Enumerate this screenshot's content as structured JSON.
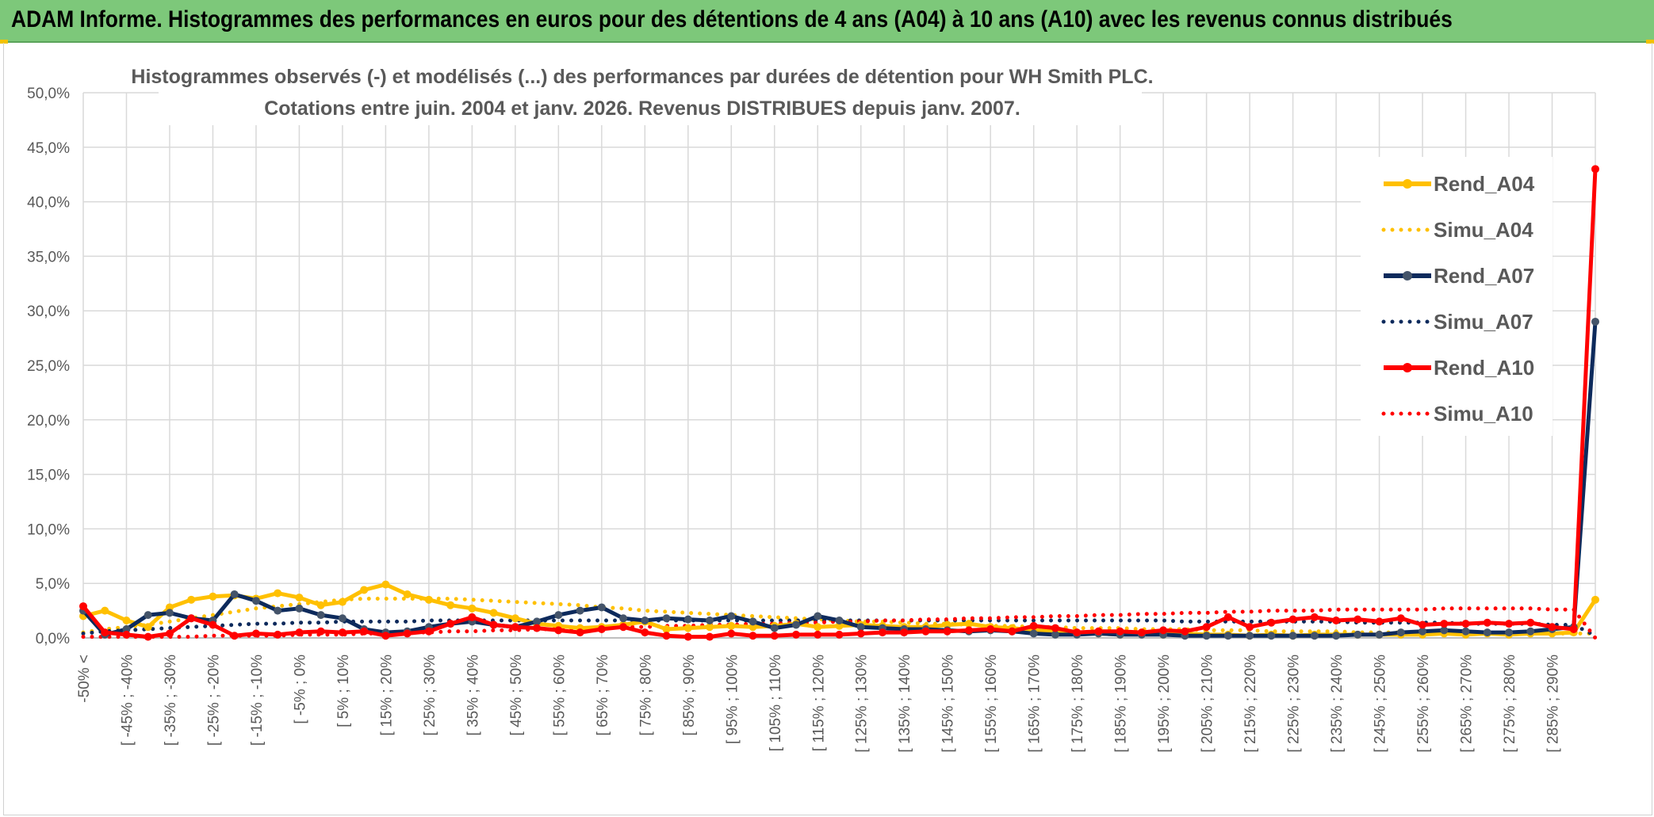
{
  "header": {
    "title": "ADAM Informe. Histogrammes des performances en euros pour des détentions de 4 ans (A04) à 10 ans (A10) avec les revenus connus distribués"
  },
  "chart_data": {
    "type": "line",
    "title_line1": "Histogrammes observés (-) et modélisés (...) des performances par durées de détention pour WH Smith PLC.",
    "title_line2": "Cotations entre juin. 2004 et janv. 2026. Revenus DISTRIBUES depuis janv. 2007.",
    "ylim": [
      0,
      50
    ],
    "ytick_labels": [
      "0,0%",
      "5,0%",
      "10,0%",
      "15,0%",
      "20,0%",
      "25,0%",
      "30,0%",
      "35,0%",
      "40,0%",
      "45,0%",
      "50,0%"
    ],
    "xtick_labels": [
      "-50% <",
      "[ -45% ; -40%",
      "[ -35% ; -30%",
      "[ -25% ; -20%",
      "[ -15% ; -10%",
      "[ -5% ; 0%",
      "[ 5% ; 10%",
      "[ 15% ; 20%",
      "[ 25% ; 30%",
      "[ 35% ; 40%",
      "[ 45% ; 50%",
      "[ 55% ; 60%",
      "[ 65% ; 70%",
      "[ 75% ; 80%",
      "[ 85% ; 90%",
      "[ 95% ; 100%",
      "[ 105% ; 110%",
      "[ 115% ; 120%",
      "[ 125% ; 130%",
      "[ 135% ; 140%",
      "[ 145% ; 150%",
      "[ 155% ; 160%",
      "[ 165% ; 170%",
      "[ 175% ; 180%",
      "[ 185% ; 190%",
      "[ 195% ; 200%",
      "[ 205% ; 210%",
      "[ 215% ; 220%",
      "[ 225% ; 230%",
      "[ 235% ; 240%",
      "[ 245% ; 250%",
      "[ 255% ; 260%",
      "[ 265% ; 270%",
      "[ 275% ; 280%",
      "[ 285% ; 290%"
    ],
    "n_points": 71,
    "series": [
      {
        "name": "Rend_A04",
        "color": "#ffc000",
        "style": "solid",
        "values": [
          2.0,
          2.5,
          1.6,
          1.0,
          2.8,
          3.5,
          3.8,
          3.9,
          3.6,
          4.1,
          3.7,
          3.0,
          3.3,
          4.4,
          4.9,
          4.0,
          3.5,
          3.0,
          2.7,
          2.3,
          1.8,
          1.3,
          1.1,
          0.9,
          1.0,
          1.2,
          1.5,
          0.8,
          0.9,
          1.0,
          1.1,
          1.0,
          1.1,
          1.3,
          1.0,
          1.1,
          1.2,
          1.1,
          1.0,
          1.0,
          1.2,
          1.3,
          1.0,
          0.9,
          0.7,
          0.6,
          0.5,
          0.4,
          0.3,
          0.4,
          0.3,
          0.4,
          0.3,
          0.3,
          0.2,
          0.3,
          0.2,
          0.3,
          0.3,
          0.3,
          0.3,
          0.3,
          0.3,
          0.4,
          0.3,
          0.4,
          0.3,
          0.4,
          0.4,
          0.5,
          3.5
        ]
      },
      {
        "name": "Simu_A04",
        "color": "#ffc000",
        "style": "dotted",
        "values": [
          0.5,
          0.8,
          1.0,
          1.2,
          1.5,
          1.8,
          2.1,
          2.4,
          2.7,
          2.9,
          3.1,
          3.3,
          3.5,
          3.6,
          3.6,
          3.6,
          3.6,
          3.6,
          3.5,
          3.4,
          3.3,
          3.2,
          3.1,
          3.0,
          2.8,
          2.7,
          2.5,
          2.4,
          2.3,
          2.2,
          2.1,
          2.0,
          1.9,
          1.8,
          1.7,
          1.6,
          1.5,
          1.5,
          1.4,
          1.3,
          1.3,
          1.2,
          1.1,
          1.1,
          1.0,
          1.0,
          0.9,
          0.9,
          0.9,
          0.8,
          0.8,
          0.8,
          0.7,
          0.7,
          0.7,
          0.6,
          0.6,
          0.6,
          0.6,
          0.5,
          0.5,
          0.5,
          0.5,
          0.5,
          0.5,
          0.4,
          0.4,
          0.4,
          0.4,
          0.4,
          0.4
        ]
      },
      {
        "name": "Rend_A07",
        "color": "#0d2a5c",
        "style": "solid",
        "values": [
          2.5,
          0.3,
          0.8,
          2.1,
          2.3,
          1.8,
          1.6,
          4.0,
          3.4,
          2.5,
          2.7,
          2.1,
          1.8,
          0.8,
          0.5,
          0.6,
          1.0,
          1.3,
          1.5,
          1.2,
          1.0,
          1.5,
          2.1,
          2.5,
          2.8,
          1.8,
          1.6,
          1.8,
          1.7,
          1.6,
          2.0,
          1.5,
          0.9,
          1.2,
          2.0,
          1.6,
          1.0,
          0.9,
          0.8,
          0.8,
          0.7,
          0.6,
          0.7,
          0.6,
          0.4,
          0.3,
          0.3,
          0.4,
          0.3,
          0.3,
          0.3,
          0.2,
          0.2,
          0.2,
          0.2,
          0.2,
          0.2,
          0.2,
          0.2,
          0.3,
          0.3,
          0.5,
          0.6,
          0.7,
          0.6,
          0.5,
          0.5,
          0.6,
          0.8,
          1.0,
          29.0
        ]
      },
      {
        "name": "Simu_A07",
        "color": "#0d2a5c",
        "style": "dotted",
        "values": [
          0.4,
          0.6,
          0.7,
          0.8,
          0.9,
          1.0,
          1.1,
          1.2,
          1.3,
          1.3,
          1.4,
          1.4,
          1.5,
          1.5,
          1.5,
          1.5,
          1.6,
          1.6,
          1.6,
          1.6,
          1.6,
          1.6,
          1.6,
          1.6,
          1.6,
          1.6,
          1.6,
          1.6,
          1.6,
          1.6,
          1.6,
          1.6,
          1.6,
          1.6,
          1.6,
          1.6,
          1.6,
          1.6,
          1.6,
          1.6,
          1.6,
          1.6,
          1.6,
          1.6,
          1.6,
          1.6,
          1.6,
          1.6,
          1.6,
          1.6,
          1.6,
          1.5,
          1.5,
          1.5,
          1.5,
          1.5,
          1.5,
          1.5,
          1.5,
          1.4,
          1.4,
          1.4,
          1.4,
          1.4,
          1.3,
          1.3,
          1.3,
          1.3,
          1.2,
          1.2,
          0.2
        ]
      },
      {
        "name": "Rend_A10",
        "color": "#ff0000",
        "style": "solid",
        "values": [
          2.9,
          0.5,
          0.3,
          0.1,
          0.4,
          1.8,
          1.2,
          0.2,
          0.4,
          0.3,
          0.5,
          0.6,
          0.5,
          0.6,
          0.2,
          0.4,
          0.6,
          1.3,
          1.9,
          1.2,
          1.0,
          0.9,
          0.7,
          0.5,
          0.8,
          1.0,
          0.5,
          0.2,
          0.1,
          0.1,
          0.4,
          0.2,
          0.2,
          0.3,
          0.3,
          0.3,
          0.4,
          0.5,
          0.5,
          0.6,
          0.6,
          0.7,
          0.8,
          0.6,
          1.1,
          0.9,
          0.5,
          0.6,
          0.6,
          0.5,
          0.7,
          0.6,
          1.0,
          1.9,
          1.0,
          1.4,
          1.7,
          1.9,
          1.6,
          1.7,
          1.5,
          1.8,
          1.2,
          1.3,
          1.3,
          1.4,
          1.3,
          1.4,
          1.0,
          0.8,
          43.0
        ]
      },
      {
        "name": "Simu_A10",
        "color": "#ff0000",
        "style": "dotted",
        "values": [
          0.1,
          0.1,
          0.1,
          0.1,
          0.1,
          0.1,
          0.2,
          0.2,
          0.2,
          0.2,
          0.3,
          0.3,
          0.3,
          0.4,
          0.4,
          0.5,
          0.5,
          0.6,
          0.6,
          0.7,
          0.7,
          0.8,
          0.8,
          0.9,
          0.9,
          1.0,
          1.0,
          1.1,
          1.1,
          1.2,
          1.2,
          1.3,
          1.3,
          1.4,
          1.4,
          1.5,
          1.5,
          1.6,
          1.6,
          1.7,
          1.7,
          1.8,
          1.8,
          1.9,
          1.9,
          2.0,
          2.0,
          2.1,
          2.1,
          2.2,
          2.2,
          2.3,
          2.3,
          2.4,
          2.4,
          2.5,
          2.5,
          2.5,
          2.6,
          2.6,
          2.6,
          2.6,
          2.6,
          2.7,
          2.7,
          2.7,
          2.7,
          2.7,
          2.6,
          2.6,
          0.0
        ]
      }
    ],
    "legend": [
      "Rend_A04",
      "Simu_A04",
      "Rend_A07",
      "Simu_A07",
      "Rend_A10",
      "Simu_A10"
    ],
    "legend_position": "right",
    "grid": true
  }
}
